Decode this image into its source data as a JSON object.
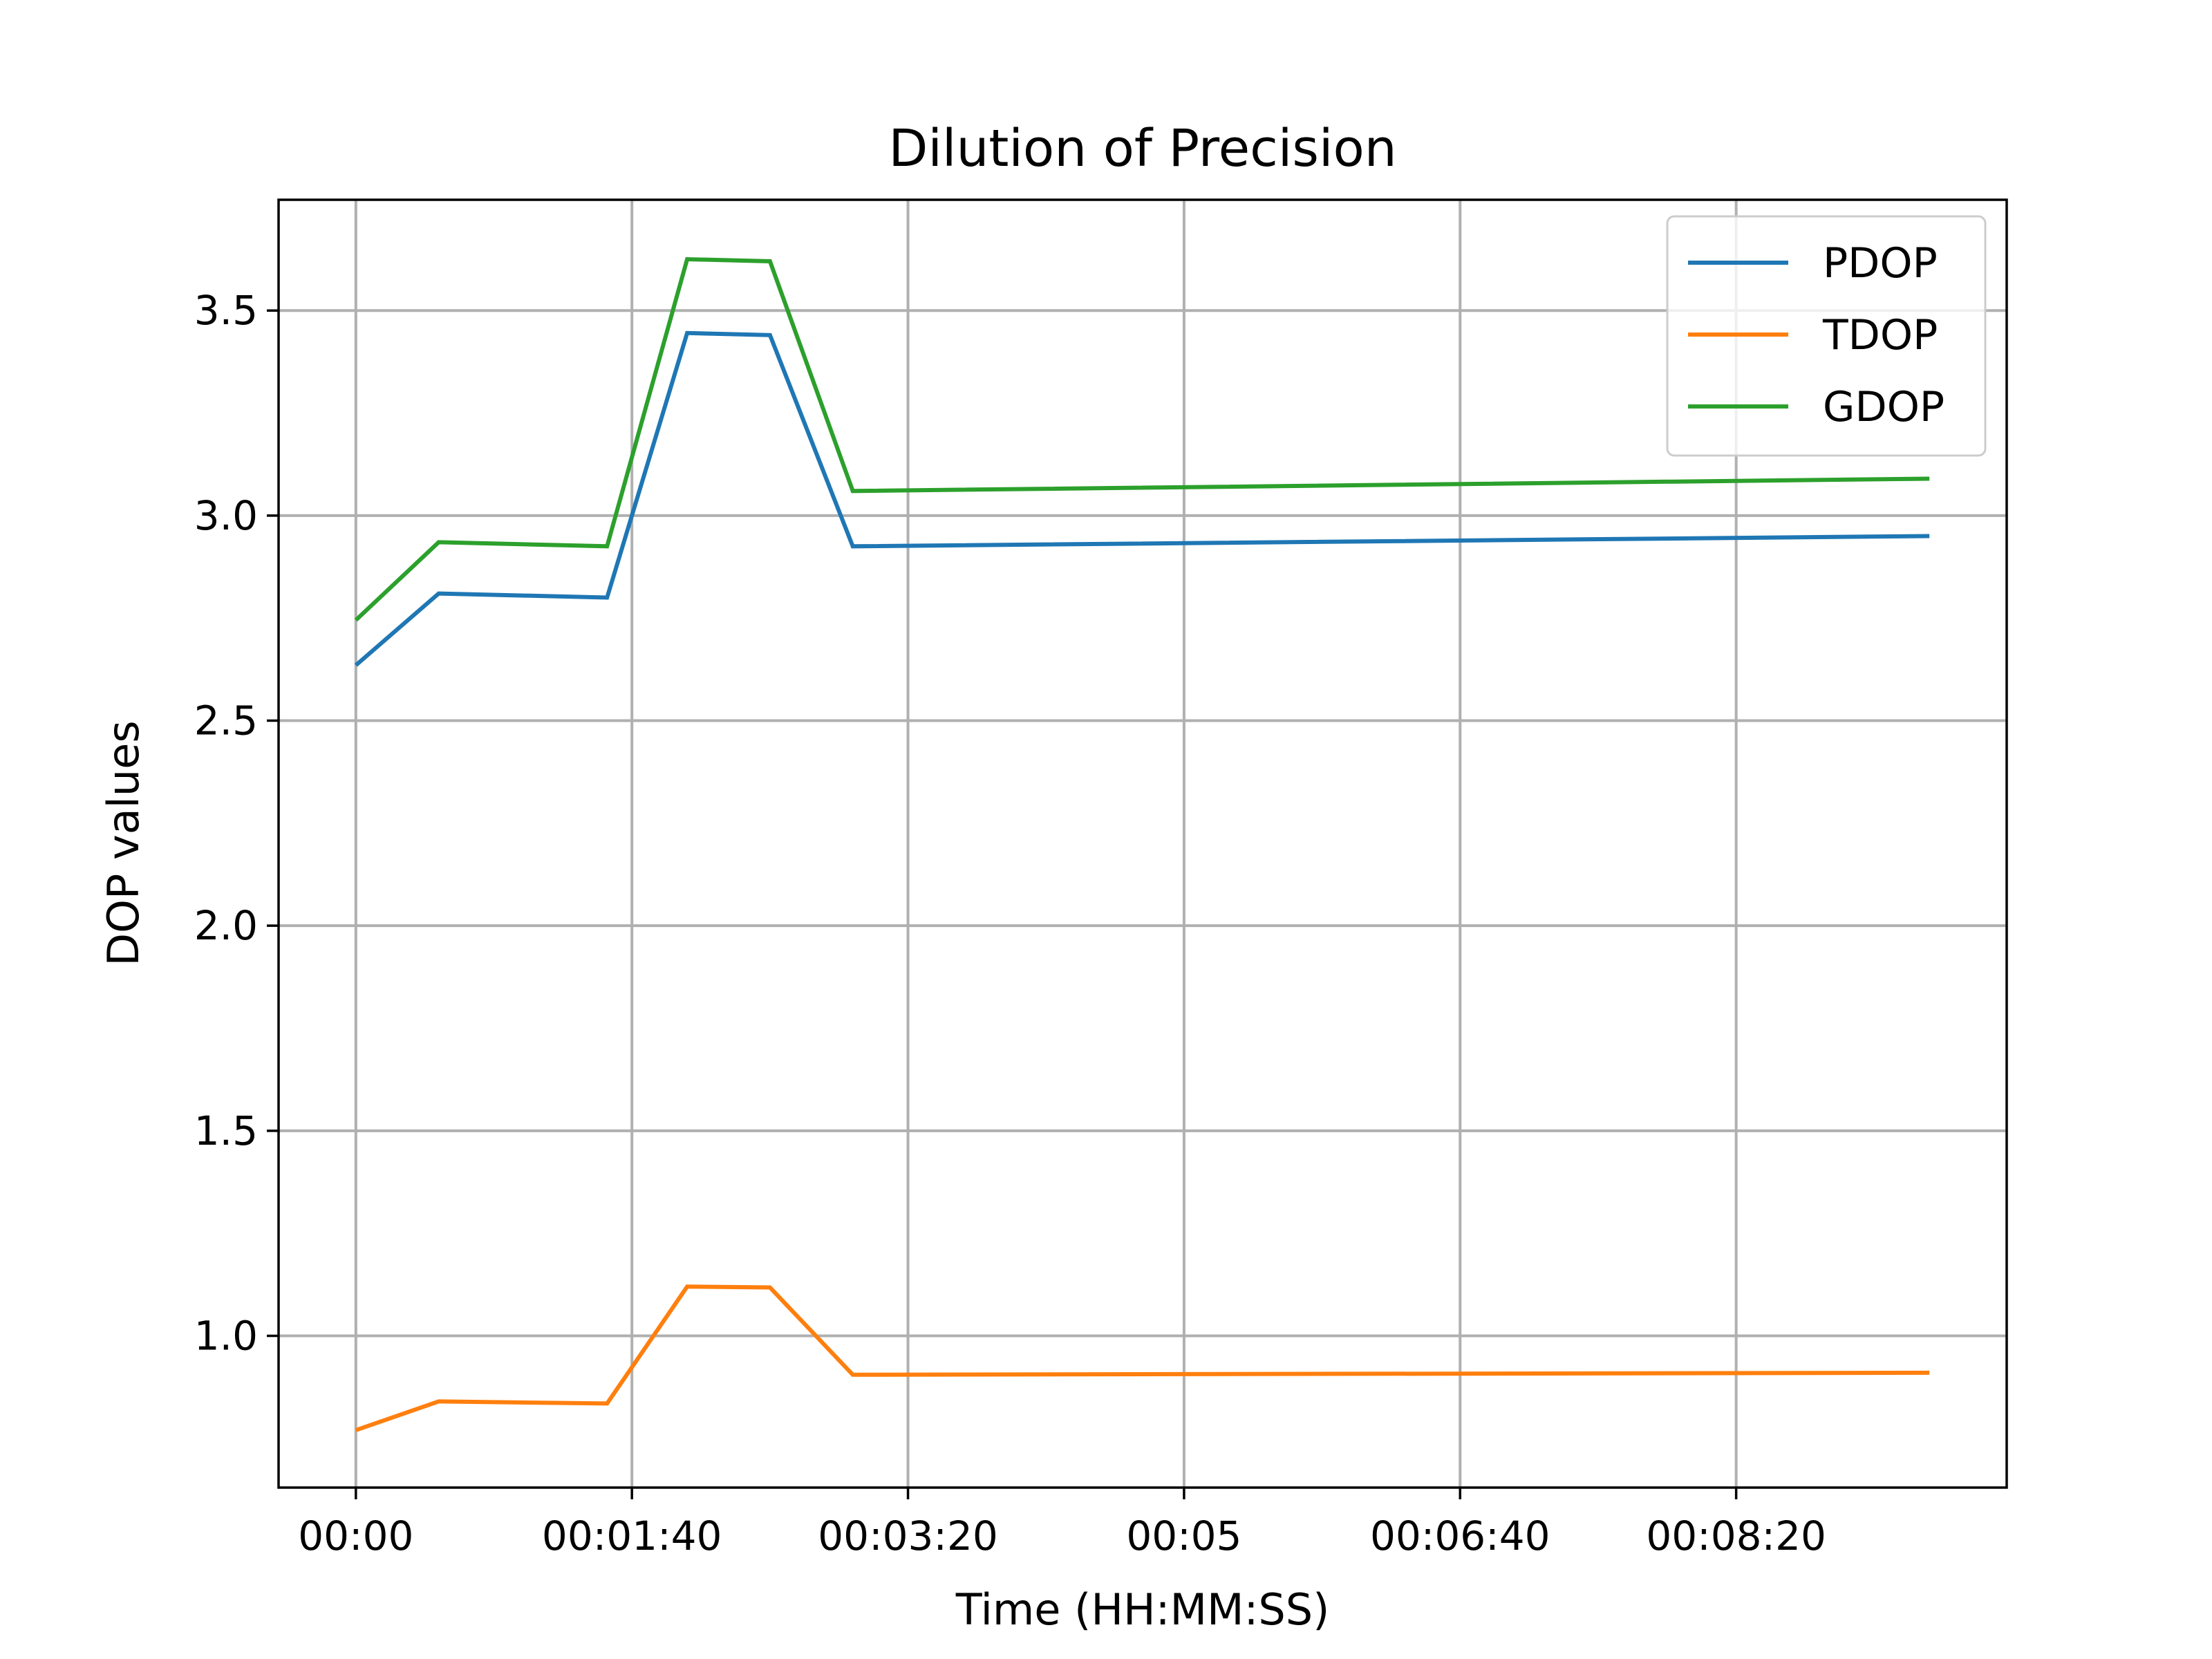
{
  "chart_data": {
    "type": "line",
    "title": "Dilution of Precision",
    "xlabel": "Time (HH:MM:SS)",
    "ylabel": "DOP values",
    "x_unit": "seconds",
    "xlim": [
      -28,
      598
    ],
    "ylim": [
      0.63,
      3.77
    ],
    "x_ticks": [
      {
        "value": 0,
        "label": "00:00"
      },
      {
        "value": 100,
        "label": "00:01:40"
      },
      {
        "value": 200,
        "label": "00:03:20"
      },
      {
        "value": 300,
        "label": "00:05"
      },
      {
        "value": 400,
        "label": "00:06:40"
      },
      {
        "value": 500,
        "label": "00:08:20"
      }
    ],
    "y_ticks": [
      {
        "value": 1.0,
        "label": "1.0"
      },
      {
        "value": 1.5,
        "label": "1.5"
      },
      {
        "value": 2.0,
        "label": "2.0"
      },
      {
        "value": 2.5,
        "label": "2.5"
      },
      {
        "value": 3.0,
        "label": "3.0"
      },
      {
        "value": 3.5,
        "label": "3.5"
      }
    ],
    "x": [
      0,
      30,
      91,
      120,
      150,
      180,
      570
    ],
    "series": [
      {
        "name": "PDOP",
        "color": "#1f77b4",
        "values": [
          2.635,
          2.81,
          2.8,
          3.445,
          3.44,
          2.925,
          2.95
        ]
      },
      {
        "name": "TDOP",
        "color": "#ff7f0e",
        "values": [
          0.77,
          0.84,
          0.835,
          1.12,
          1.118,
          0.905,
          0.91
        ]
      },
      {
        "name": "GDOP",
        "color": "#2ca02c",
        "values": [
          2.745,
          2.935,
          2.925,
          3.625,
          3.62,
          3.06,
          3.09
        ]
      }
    ],
    "grid": true,
    "legend_position": "top-right"
  }
}
